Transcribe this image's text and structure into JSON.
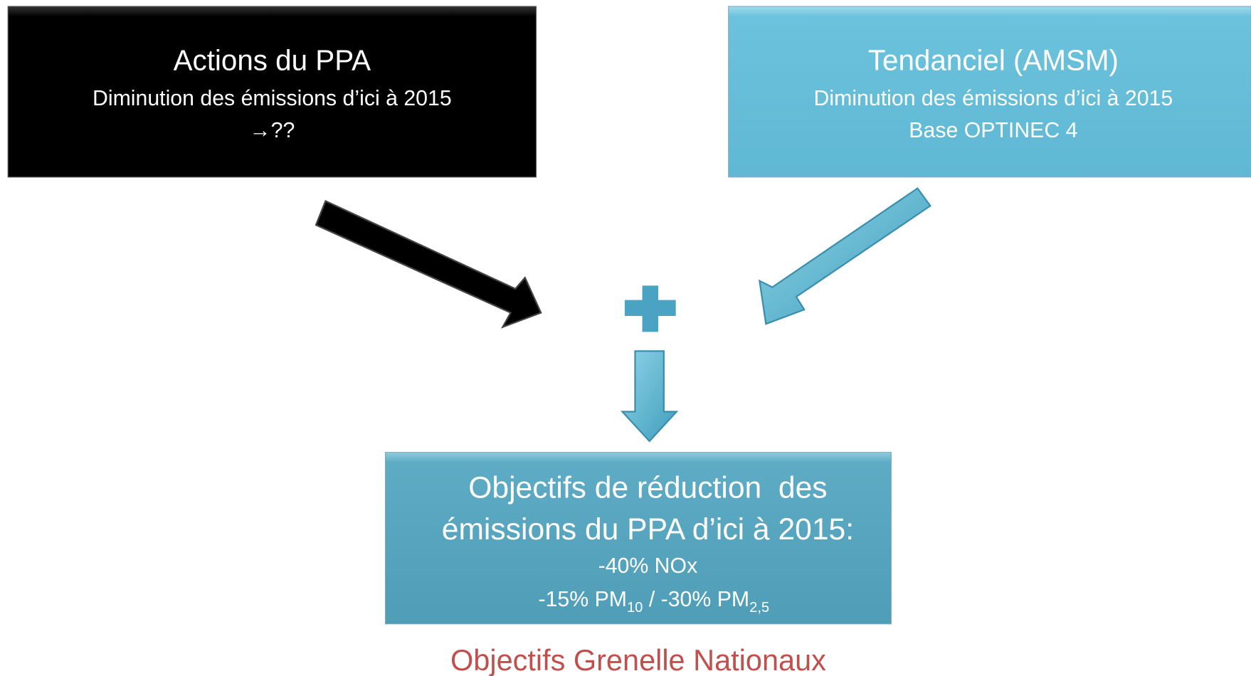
{
  "left_box": {
    "title": "Actions du PPA",
    "lines": [
      "Diminution des émissions d’ici à 2015",
      "→??"
    ]
  },
  "right_box": {
    "title": "Tendanciel (AMSM)",
    "lines": [
      "Diminution des émissions d’ici à 2015",
      "Base OPTINEC 4"
    ]
  },
  "result_box": {
    "title_lines": [
      "Objectifs de réduction  des",
      "émissions du PPA d’ici à 2015:"
    ],
    "line1": "-40% NOx",
    "line2": [
      "-15% PM",
      "10",
      " / -30% PM",
      "2,5"
    ]
  },
  "footer": "Objectifs Grenelle Nationaux"
}
